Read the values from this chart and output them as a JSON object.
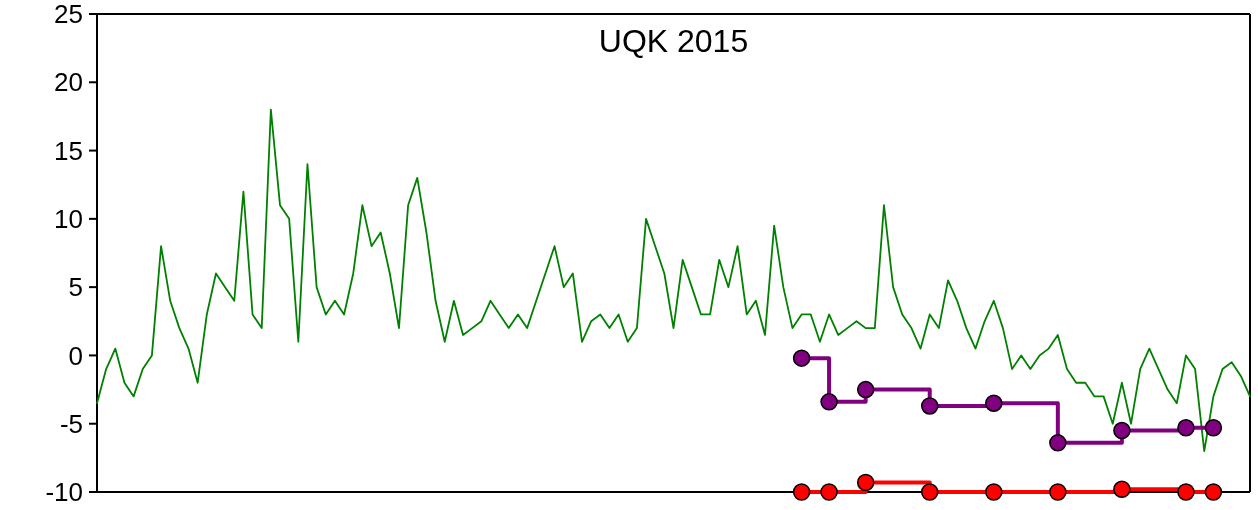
{
  "chart_data": {
    "type": "line",
    "title": "UQK 2015",
    "categories": [
      null,
      null,
      null,
      null,
      null,
      null,
      null,
      null,
      null,
      null,
      null,
      null,
      null,
      null,
      null,
      null,
      null,
      null,
      null,
      null,
      null,
      null,
      null,
      null,
      null,
      null,
      null,
      null,
      null,
      null,
      null,
      null,
      null,
      null,
      null,
      null,
      null,
      null,
      null,
      null,
      null,
      null,
      null,
      null,
      null,
      null,
      null,
      null,
      null,
      null,
      null,
      null,
      null,
      null,
      null,
      null,
      null,
      null,
      null,
      null,
      null,
      null,
      null,
      null,
      null,
      null,
      null,
      null,
      null,
      null,
      null,
      null,
      null,
      null,
      null,
      null,
      null,
      null,
      null,
      null,
      null,
      null,
      null,
      null,
      null,
      null,
      null,
      null,
      null,
      null,
      null,
      null,
      null,
      null,
      null,
      null,
      null,
      null,
      null,
      null,
      null,
      null,
      null,
      null,
      null,
      null,
      null,
      null,
      null,
      null,
      null,
      null,
      null,
      null,
      null,
      null,
      null,
      null,
      null,
      null,
      null,
      null,
      null,
      null,
      null,
      null,
      null
    ],
    "ylim": [
      -10,
      25
    ],
    "yticks": [
      -10,
      -5,
      0,
      5,
      10,
      15,
      20,
      25
    ],
    "series": [
      {
        "color": "#008000",
        "marker": "none",
        "values": [
          -3.5,
          -1,
          0.5,
          -2,
          -3,
          -1,
          0,
          8,
          4,
          2,
          0.5,
          -2,
          3,
          6,
          5,
          4,
          12,
          3,
          2,
          18,
          11,
          10,
          1,
          14,
          5,
          3,
          4,
          3,
          6,
          11,
          8,
          9,
          6,
          2,
          11,
          13,
          9,
          4,
          1,
          4,
          1.5,
          2,
          2.5,
          4,
          3,
          2,
          3,
          2,
          4,
          6,
          8,
          5,
          6,
          1,
          2.5,
          3,
          2,
          3,
          1,
          2,
          10,
          8,
          6,
          2,
          7,
          5,
          3,
          3,
          7,
          5,
          8,
          3,
          4,
          1.5,
          9.5,
          5,
          2,
          3,
          3,
          1,
          3,
          1.5,
          2,
          2.5,
          2,
          2,
          11,
          5,
          3,
          2,
          0.5,
          3,
          2,
          5.5,
          4,
          2,
          0.5,
          2.5,
          4,
          2,
          -1,
          0,
          -1,
          0,
          0.5,
          1.5,
          -1,
          -2,
          -2,
          -3,
          -3,
          -5,
          -2,
          -5,
          -1,
          0.5,
          -1,
          -2.5,
          -3.5,
          0,
          -1,
          -7,
          -3,
          -1,
          -0.5,
          -1.5,
          -3
        ]
      },
      {
        "type": "step",
        "color": "#800080",
        "marker": "circle",
        "values": [
          null,
          null,
          null,
          null,
          null,
          null,
          null,
          null,
          null,
          null,
          null,
          null,
          null,
          null,
          null,
          null,
          null,
          null,
          null,
          null,
          null,
          null,
          null,
          null,
          null,
          null,
          null,
          null,
          null,
          null,
          null,
          null,
          null,
          null,
          null,
          null,
          null,
          null,
          null,
          null,
          null,
          null,
          null,
          null,
          null,
          null,
          null,
          null,
          null,
          null,
          null,
          null,
          null,
          null,
          null,
          null,
          null,
          null,
          null,
          null,
          null,
          null,
          null,
          null,
          null,
          null,
          null,
          null,
          null,
          null,
          null,
          null,
          null,
          null,
          null,
          null,
          null,
          -0.2,
          null,
          null,
          -3.4,
          null,
          null,
          null,
          -2.5,
          null,
          null,
          null,
          null,
          null,
          null,
          -3.7,
          null,
          null,
          null,
          null,
          null,
          null,
          -3.5,
          null,
          null,
          null,
          null,
          null,
          null,
          -6.4,
          null,
          null,
          null,
          null,
          null,
          null,
          -5.5,
          null,
          null,
          null,
          null,
          null,
          null,
          -5.3,
          null,
          null,
          -5.3,
          null,
          null,
          null,
          null
        ]
      },
      {
        "type": "step",
        "color": "#ff0000",
        "marker": "circle",
        "values": [
          null,
          null,
          null,
          null,
          null,
          null,
          null,
          null,
          null,
          null,
          null,
          null,
          null,
          null,
          null,
          null,
          null,
          null,
          null,
          null,
          null,
          null,
          null,
          null,
          null,
          null,
          null,
          null,
          null,
          null,
          null,
          null,
          null,
          null,
          null,
          null,
          null,
          null,
          null,
          null,
          null,
          null,
          null,
          null,
          null,
          null,
          null,
          null,
          null,
          null,
          null,
          null,
          null,
          null,
          null,
          null,
          null,
          null,
          null,
          null,
          null,
          null,
          null,
          null,
          null,
          null,
          null,
          null,
          null,
          null,
          null,
          null,
          null,
          null,
          null,
          null,
          null,
          -10,
          null,
          null,
          -10,
          null,
          null,
          null,
          -9.3,
          null,
          null,
          null,
          null,
          null,
          null,
          -10,
          null,
          null,
          null,
          null,
          null,
          null,
          -10,
          null,
          null,
          null,
          null,
          null,
          null,
          -10,
          null,
          null,
          null,
          null,
          null,
          null,
          -9.8,
          null,
          null,
          null,
          null,
          null,
          null,
          -10,
          null,
          null,
          -10,
          null,
          null,
          null,
          null
        ]
      }
    ]
  }
}
